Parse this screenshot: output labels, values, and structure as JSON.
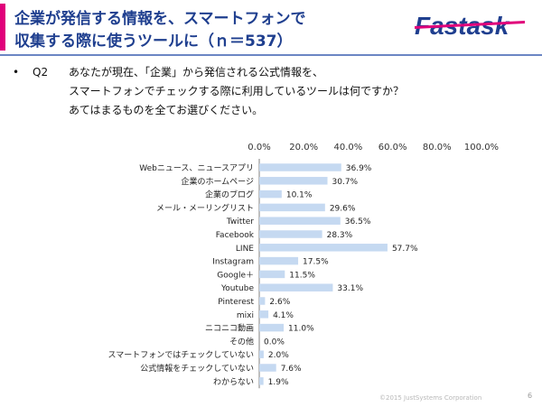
{
  "header": {
    "title_line1": "企業が発信する情報を、スマートフォンで",
    "title_line2": "収集する際に使うツールに（ｎ＝537）",
    "logo_text": "Fastask",
    "accent_color": "#e0007a",
    "title_color": "#1f3f8f"
  },
  "question": {
    "bullet": "•",
    "label": "Q2",
    "line1": "あなたが現在、「企業」から発信される公式情報を、",
    "line2": "スマートフォンでチェックする際に利用しているツールは何ですか？",
    "line3": "あてはまるものを全てお選びください。"
  },
  "chart_data": {
    "type": "bar",
    "orientation": "horizontal",
    "categories": [
      "Webニュース、ニュースアプリ",
      "企業のホームページ",
      "企業のブログ",
      "メール・メーリングリスト",
      "Twitter",
      "Facebook",
      "LINE",
      "Instagram",
      "Google＋",
      "Youtube",
      "Pinterest",
      "mixi",
      "ニコニコ動画",
      "その他",
      "スマートフォンではチェックしていない",
      "公式情報をチェックしていない",
      "わからない"
    ],
    "values": [
      36.9,
      30.7,
      10.1,
      29.6,
      36.5,
      28.3,
      57.7,
      17.5,
      11.5,
      33.1,
      2.6,
      4.1,
      11.0,
      0.0,
      2.0,
      7.6,
      1.9
    ],
    "value_labels": [
      "36.9%",
      "30.7%",
      "10.1%",
      "29.6%",
      "36.5%",
      "28.3%",
      "57.7%",
      "17.5%",
      "11.5%",
      "33.1%",
      "2.6%",
      "4.1%",
      "11.0%",
      "0.0%",
      "2.0%",
      "7.6%",
      "1.9%"
    ],
    "xticks": [
      "0.0%",
      "20.0%",
      "40.0%",
      "60.0%",
      "80.0%",
      "100.0%"
    ],
    "xlim": [
      0,
      100
    ],
    "bar_color": "#c5d9f1",
    "axis_color": "#7f7f7f",
    "grid": false,
    "legend": false
  },
  "footer": {
    "copyright": "©2015 JustSystems Corporation",
    "page_number": "6"
  }
}
